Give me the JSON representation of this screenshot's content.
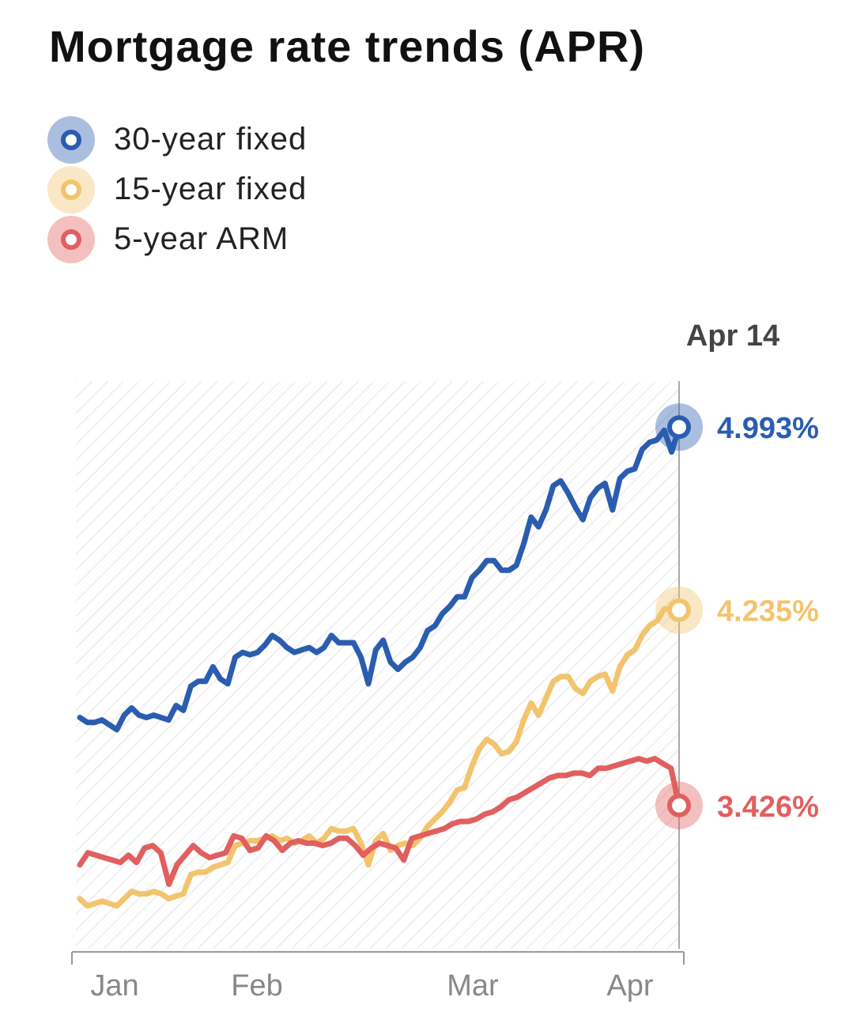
{
  "title": "Mortgage rate trends (APR)",
  "current_date_label": "Apr 14",
  "colors": {
    "series_1": "#2a5db0",
    "series_2": "#f2c46d",
    "series_3": "#e15f5f",
    "axis": "#999999"
  },
  "legend": [
    {
      "label": "30-year fixed",
      "color": "#2a5db0"
    },
    {
      "label": "15-year fixed",
      "color": "#f2c46d"
    },
    {
      "label": "5-year ARM",
      "color": "#e15f5f"
    }
  ],
  "chart_data": {
    "type": "line",
    "title": "Mortgage rate trends (APR)",
    "x_ticks": [
      "Jan",
      "Feb",
      "Mar",
      "Apr"
    ],
    "grid": false,
    "legend_position": "top-left",
    "series": [
      {
        "name": "30-year fixed",
        "color": "#2a5db0",
        "end_label": "4.993%",
        "values": [
          3.79,
          3.77,
          3.77,
          3.78,
          3.76,
          3.74,
          3.8,
          3.83,
          3.8,
          3.79,
          3.8,
          3.79,
          3.78,
          3.84,
          3.82,
          3.92,
          3.94,
          3.94,
          4.0,
          3.95,
          3.93,
          4.04,
          4.06,
          4.05,
          4.06,
          4.09,
          4.13,
          4.11,
          4.08,
          4.06,
          4.07,
          4.08,
          4.06,
          4.08,
          4.13,
          4.1,
          4.1,
          4.1,
          4.04,
          3.93,
          4.07,
          4.11,
          4.02,
          3.99,
          4.02,
          4.04,
          4.08,
          4.15,
          4.17,
          4.22,
          4.25,
          4.29,
          4.29,
          4.37,
          4.4,
          4.44,
          4.44,
          4.4,
          4.4,
          4.42,
          4.51,
          4.62,
          4.58,
          4.65,
          4.75,
          4.77,
          4.72,
          4.66,
          4.61,
          4.7,
          4.74,
          4.76,
          4.65,
          4.78,
          4.81,
          4.82,
          4.9,
          4.93,
          4.94,
          4.98,
          4.89,
          4.993
        ]
      },
      {
        "name": "15-year fixed",
        "color": "#f2c46d",
        "end_label": "4.235%",
        "values": [
          3.04,
          3.01,
          3.02,
          3.03,
          3.02,
          3.01,
          3.04,
          3.07,
          3.06,
          3.06,
          3.07,
          3.06,
          3.04,
          3.05,
          3.06,
          3.14,
          3.15,
          3.15,
          3.17,
          3.18,
          3.19,
          3.26,
          3.27,
          3.28,
          3.28,
          3.29,
          3.3,
          3.28,
          3.29,
          3.27,
          3.28,
          3.3,
          3.27,
          3.29,
          3.33,
          3.32,
          3.32,
          3.33,
          3.27,
          3.18,
          3.28,
          3.31,
          3.24,
          3.26,
          3.27,
          3.26,
          3.29,
          3.34,
          3.37,
          3.4,
          3.44,
          3.49,
          3.5,
          3.59,
          3.66,
          3.7,
          3.68,
          3.64,
          3.65,
          3.69,
          3.78,
          3.85,
          3.8,
          3.87,
          3.94,
          3.96,
          3.96,
          3.91,
          3.89,
          3.94,
          3.96,
          3.97,
          3.9,
          4.0,
          4.05,
          4.07,
          4.13,
          4.17,
          4.19,
          4.24,
          4.24,
          4.235
        ]
      },
      {
        "name": "5-year ARM",
        "color": "#e15f5f",
        "end_label": "3.426%",
        "values": [
          3.18,
          3.23,
          3.22,
          3.21,
          3.2,
          3.19,
          3.22,
          3.19,
          3.25,
          3.26,
          3.23,
          3.1,
          3.18,
          3.22,
          3.26,
          3.23,
          3.21,
          3.22,
          3.23,
          3.3,
          3.29,
          3.24,
          3.25,
          3.3,
          3.28,
          3.24,
          3.27,
          3.28,
          3.27,
          3.27,
          3.26,
          3.27,
          3.29,
          3.29,
          3.26,
          3.22,
          3.25,
          3.27,
          3.26,
          3.25,
          3.2,
          3.29,
          3.3,
          3.31,
          3.32,
          3.33,
          3.35,
          3.36,
          3.36,
          3.37,
          3.39,
          3.4,
          3.42,
          3.45,
          3.46,
          3.48,
          3.5,
          3.52,
          3.54,
          3.55,
          3.55,
          3.56,
          3.56,
          3.55,
          3.58,
          3.58,
          3.59,
          3.6,
          3.61,
          3.62,
          3.61,
          3.62,
          3.6,
          3.58,
          3.426
        ]
      }
    ]
  }
}
